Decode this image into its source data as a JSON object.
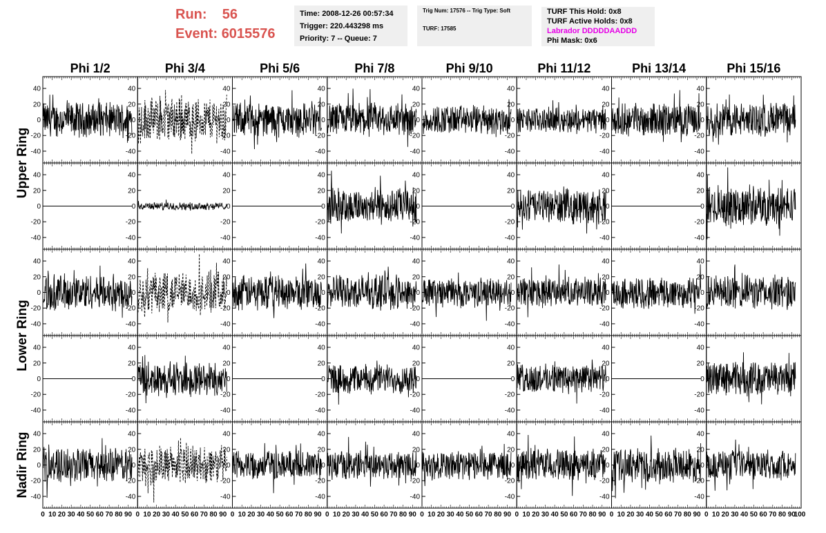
{
  "header": {
    "run_label": "Run:",
    "run_value": "56",
    "event_label": "Event:",
    "event_value": "6015576",
    "time": "Time: 2008-12-26 00:57:34",
    "trigger": "Trigger: 220.443298 ms",
    "priority": "Priority: 7 -- Queue: 7",
    "trig_num": "Trig Num: 17576 -- Trig Type: Soft",
    "turf": "TURF: 17585",
    "turf_this_hold": "TURF This Hold: 0x8",
    "turf_active_holds": "TURF Active Holds: 0x8",
    "labrador": "Labrador DDDDDAADDD",
    "phi_mask": "Phi Mask: 0x6"
  },
  "colors": {
    "title_red": "#d9534f",
    "labrador_magenta": "#e600e6",
    "box_gray": "#efefef"
  },
  "chart_data": {
    "type": "line",
    "columns": [
      "Phi 1/2",
      "Phi 3/4",
      "Phi 5/6",
      "Phi 7/8",
      "Phi 9/10",
      "Phi 11/12",
      "Phi 13/14",
      "Phi 15/16"
    ],
    "rows": [
      {
        "label": "Upper Ring",
        "subrows": 2
      },
      {
        "label": "Lower Ring",
        "subrows": 2
      },
      {
        "label": "Nadir Ring",
        "subrows": 1
      }
    ],
    "xlim": [
      0,
      100
    ],
    "ylim": [
      -55,
      55
    ],
    "y_ticks": [
      -40,
      -20,
      0,
      20,
      40
    ],
    "x_ticks": [
      0,
      10,
      20,
      30,
      40,
      50,
      60,
      70,
      80,
      90
    ],
    "x_tick_labels": [
      "0",
      "10",
      "20",
      "30",
      "40",
      "50",
      "60",
      "70",
      "80",
      "90"
    ],
    "last_x_tick_label": "100",
    "panel_amplitudes": [
      [
        14,
        18,
        14,
        14,
        12,
        10,
        13,
        14
      ],
      [
        0,
        3,
        0,
        15,
        0,
        14,
        0,
        16
      ],
      [
        15,
        17,
        14,
        14,
        12,
        12,
        13,
        14
      ],
      [
        0,
        14,
        0,
        12,
        0,
        12,
        0,
        14
      ],
      [
        14,
        16,
        12,
        12,
        12,
        13,
        14,
        12
      ]
    ],
    "panel_styles": [
      [
        "solid",
        "dashed",
        "solid",
        "solid",
        "solid",
        "solid",
        "solid",
        "solid"
      ],
      [
        "solid",
        "solid",
        "solid",
        "solid",
        "solid",
        "solid",
        "solid",
        "solid"
      ],
      [
        "solid",
        "dashed",
        "solid",
        "solid",
        "solid",
        "solid",
        "solid",
        "solid"
      ],
      [
        "solid",
        "solid",
        "solid",
        "solid",
        "solid",
        "solid",
        "solid",
        "solid"
      ],
      [
        "solid",
        "dashed",
        "solid",
        "solid",
        "solid",
        "solid",
        "solid",
        "solid"
      ]
    ],
    "samples_per_trace": 260
  }
}
